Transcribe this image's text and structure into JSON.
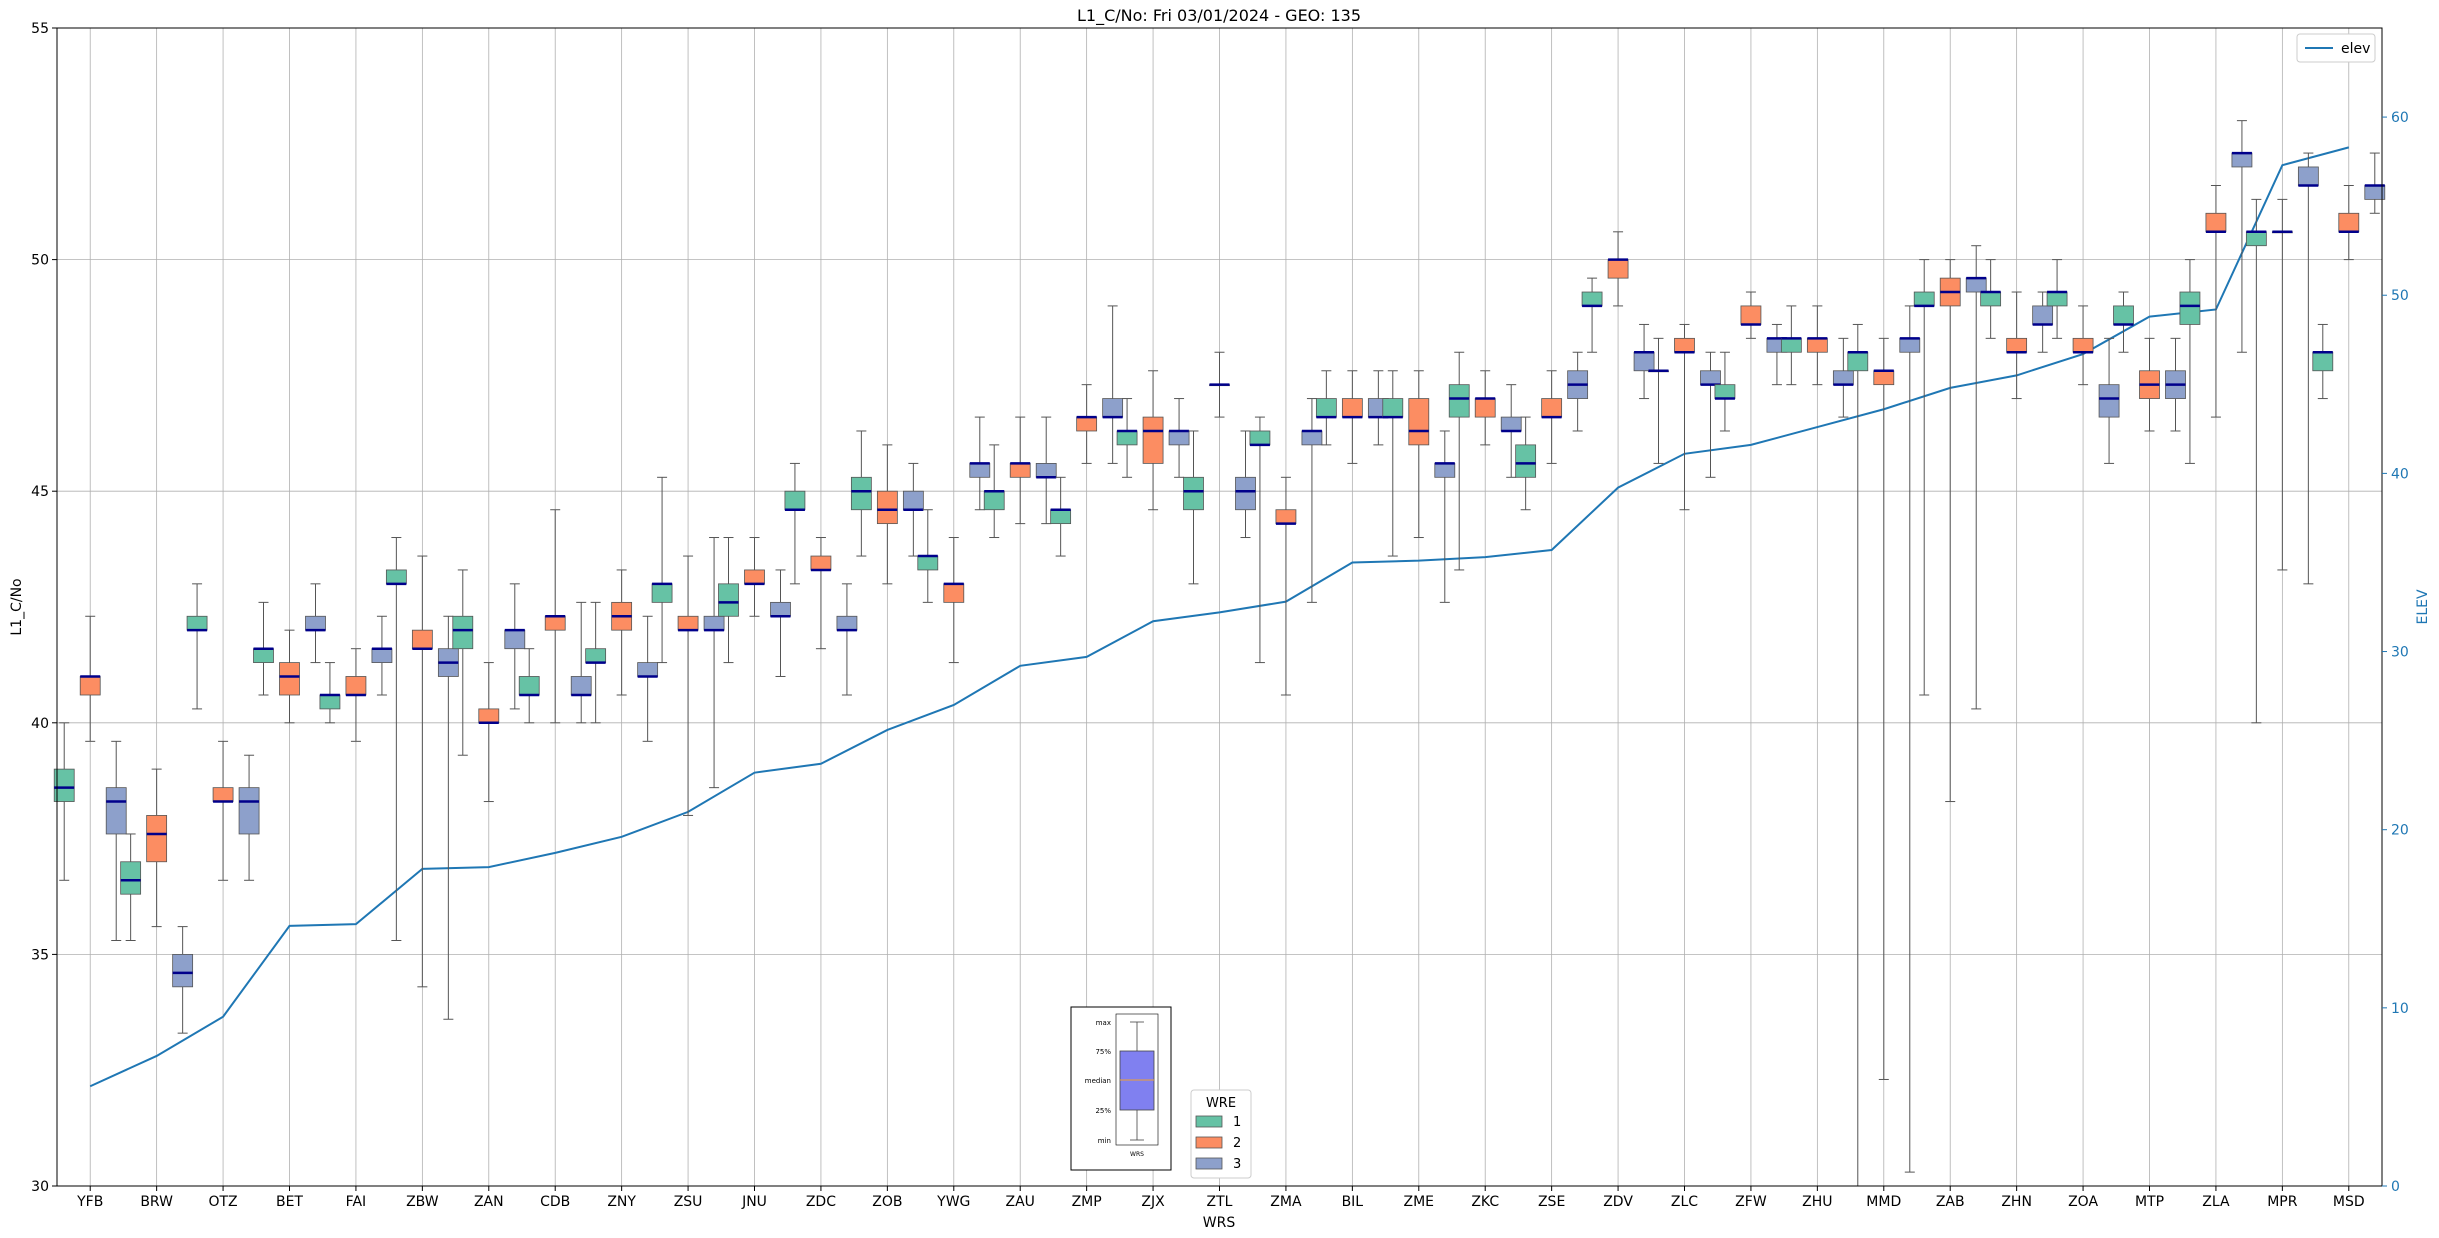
{
  "chart_data": {
    "type": "box",
    "title": "L1_C/No: Fri 03/01/2024 - GEO: 135",
    "xlabel": "WRS",
    "ylabel": "L1_C/No",
    "y2label": "ELEV",
    "ylim": [
      30,
      55
    ],
    "y2lim": [
      0,
      65
    ],
    "yticks": [
      30,
      35,
      40,
      45,
      50,
      55
    ],
    "y2ticks": [
      0,
      10,
      20,
      30,
      40,
      50,
      60
    ],
    "grid": true,
    "categories": [
      "YFB",
      "BRW",
      "OTZ",
      "BET",
      "FAI",
      "ZBW",
      "ZAN",
      "CDB",
      "ZNY",
      "ZSU",
      "JNU",
      "ZDC",
      "ZOB",
      "YWG",
      "ZAU",
      "ZMP",
      "ZJX",
      "ZTL",
      "ZMA",
      "BIL",
      "ZME",
      "ZKC",
      "ZSE",
      "ZDV",
      "ZLC",
      "ZFW",
      "ZHU",
      "MMD",
      "ZAB",
      "ZHN",
      "ZOA",
      "MTP",
      "ZLA",
      "MPR",
      "MSD"
    ],
    "colors": {
      "1": "#66c2a5",
      "2": "#fc8d62",
      "3": "#8da0cb",
      "median": "#00008b",
      "whisker": "#555555",
      "elev": "#1f77b4"
    },
    "wre_legend": {
      "title": "WRE",
      "items": [
        "1",
        "2",
        "3"
      ]
    },
    "elev_legend": "elev",
    "key_box": {
      "labels": [
        "max",
        "75%",
        "median",
        "25%",
        "min"
      ],
      "caption": "WRS"
    },
    "boxes": {
      "YFB": {
        "1": [
          36.6,
          38.3,
          38.6,
          39.0,
          40.0
        ],
        "2": [
          39.6,
          40.6,
          41.0,
          41.0,
          42.3
        ],
        "3": [
          35.3,
          37.6,
          38.3,
          38.6,
          39.6
        ]
      },
      "BRW": {
        "1": [
          35.3,
          36.3,
          36.6,
          37.0,
          37.6
        ],
        "2": [
          35.6,
          37.0,
          37.6,
          38.0,
          39.0
        ],
        "3": [
          33.3,
          34.3,
          34.6,
          35.0,
          35.6
        ]
      },
      "OTZ": {
        "1": [
          40.3,
          42.0,
          42.0,
          42.3,
          43.0
        ],
        "2": [
          36.6,
          38.3,
          38.3,
          38.6,
          39.6
        ],
        "3": [
          36.6,
          37.6,
          38.3,
          38.6,
          39.3
        ]
      },
      "BET": {
        "1": [
          40.6,
          41.3,
          41.6,
          41.6,
          42.6
        ],
        "2": [
          40.0,
          40.6,
          41.0,
          41.3,
          42.0
        ],
        "3": [
          41.3,
          42.0,
          42.0,
          42.3,
          43.0
        ]
      },
      "FAI": {
        "1": [
          40.0,
          40.3,
          40.6,
          40.6,
          41.3
        ],
        "2": [
          39.6,
          40.6,
          40.6,
          41.0,
          41.6
        ],
        "3": [
          40.6,
          41.3,
          41.6,
          41.6,
          42.3
        ]
      },
      "ZBW": {
        "1": [
          35.3,
          43.0,
          43.0,
          43.3,
          44.0
        ],
        "2": [
          34.3,
          41.6,
          41.6,
          42.0,
          43.6
        ],
        "3": [
          33.6,
          41.0,
          41.3,
          41.6,
          42.3
        ]
      },
      "ZAN": {
        "1": [
          39.3,
          41.6,
          42.0,
          42.3,
          43.3
        ],
        "2": [
          38.3,
          40.0,
          40.0,
          40.3,
          41.3
        ],
        "3": [
          40.3,
          41.6,
          42.0,
          42.0,
          43.0
        ]
      },
      "CDB": {
        "1": [
          40.0,
          40.6,
          40.6,
          41.0,
          41.6
        ],
        "2": [
          40.0,
          42.0,
          42.3,
          42.3,
          44.6
        ],
        "3": [
          40.0,
          40.6,
          40.6,
          41.0,
          42.6
        ]
      },
      "ZNY": {
        "1": [
          40.0,
          41.3,
          41.3,
          41.6,
          42.6
        ],
        "2": [
          40.6,
          42.0,
          42.3,
          42.6,
          43.3
        ],
        "3": [
          39.6,
          41.0,
          41.0,
          41.3,
          42.3
        ]
      },
      "ZSU": {
        "1": [
          41.3,
          42.6,
          43.0,
          43.0,
          45.3
        ],
        "2": [
          38.0,
          42.0,
          42.0,
          42.3,
          43.6
        ],
        "3": [
          38.6,
          42.0,
          42.0,
          42.3,
          44.0
        ]
      },
      "JNU": {
        "1": [
          41.3,
          42.3,
          42.6,
          43.0,
          44.0
        ],
        "2": [
          42.3,
          43.0,
          43.0,
          43.3,
          44.0
        ],
        "3": [
          41.0,
          42.3,
          42.3,
          42.6,
          43.3
        ]
      },
      "ZDC": {
        "1": [
          43.0,
          44.6,
          44.6,
          45.0,
          45.6
        ],
        "2": [
          41.6,
          43.3,
          43.3,
          43.6,
          44.0
        ],
        "3": [
          40.6,
          42.0,
          42.0,
          42.3,
          43.0
        ]
      },
      "ZOB": {
        "1": [
          43.6,
          44.6,
          45.0,
          45.3,
          46.3
        ],
        "2": [
          43.0,
          44.3,
          44.6,
          45.0,
          46.0
        ],
        "3": [
          43.6,
          44.6,
          44.6,
          45.0,
          45.6
        ]
      },
      "YWG": {
        "1": [
          42.6,
          43.3,
          43.6,
          43.6,
          44.6
        ],
        "2": [
          41.3,
          42.6,
          43.0,
          43.0,
          44.0
        ],
        "3": [
          44.6,
          45.3,
          45.6,
          45.6,
          46.6
        ]
      },
      "ZAU": {
        "1": [
          44.0,
          44.6,
          45.0,
          45.0,
          46.0
        ],
        "2": [
          44.3,
          45.3,
          45.6,
          45.6,
          46.6
        ],
        "3": [
          44.3,
          45.3,
          45.3,
          45.6,
          46.6
        ]
      },
      "ZMP": {
        "1": [
          43.6,
          44.3,
          44.6,
          44.6,
          45.3
        ],
        "2": [
          45.6,
          46.3,
          46.6,
          46.6,
          47.3
        ],
        "3": [
          45.6,
          46.6,
          46.6,
          47.0,
          49.0
        ]
      },
      "ZJX": {
        "1": [
          45.3,
          46.0,
          46.3,
          46.3,
          47.0
        ],
        "2": [
          44.6,
          45.6,
          46.3,
          46.6,
          47.6
        ],
        "3": [
          45.3,
          46.0,
          46.3,
          46.3,
          47.0
        ]
      },
      "ZTL": {
        "1": [
          43.0,
          44.6,
          45.0,
          45.3,
          46.3
        ],
        "2": [
          46.6,
          47.3,
          47.3,
          47.3,
          48.0
        ],
        "3": [
          44.0,
          44.6,
          45.0,
          45.3,
          46.3
        ]
      },
      "ZMA": {
        "1": [
          41.3,
          46.0,
          46.0,
          46.3,
          46.6
        ],
        "2": [
          40.6,
          44.3,
          44.3,
          44.6,
          45.3
        ],
        "3": [
          42.6,
          46.0,
          46.3,
          46.3,
          47.0
        ]
      },
      "BIL": {
        "1": [
          46.0,
          46.6,
          46.6,
          47.0,
          47.6
        ],
        "2": [
          45.6,
          46.6,
          46.6,
          47.0,
          47.6
        ],
        "3": [
          46.0,
          46.6,
          46.6,
          47.0,
          47.6
        ]
      },
      "ZME": {
        "1": [
          43.6,
          46.6,
          46.6,
          47.0,
          47.6
        ],
        "2": [
          44.0,
          46.0,
          46.3,
          47.0,
          47.6
        ],
        "3": [
          42.6,
          45.3,
          45.6,
          45.6,
          46.3
        ]
      },
      "ZKC": {
        "1": [
          43.3,
          46.6,
          47.0,
          47.3,
          48.0
        ],
        "2": [
          46.0,
          46.6,
          47.0,
          47.0,
          47.6
        ],
        "3": [
          45.3,
          46.3,
          46.3,
          46.6,
          47.3
        ]
      },
      "ZSE": {
        "1": [
          44.6,
          45.3,
          45.6,
          46.0,
          46.6
        ],
        "2": [
          45.6,
          46.6,
          46.6,
          47.0,
          47.6
        ],
        "3": [
          46.3,
          47.0,
          47.3,
          47.6,
          48.0
        ]
      },
      "ZDV": {
        "1": [
          48.0,
          49.0,
          49.0,
          49.3,
          49.6
        ],
        "2": [
          49.0,
          49.6,
          50.0,
          50.0,
          50.6
        ],
        "3": [
          47.0,
          47.6,
          48.0,
          48.0,
          48.6
        ]
      },
      "ZLC": {
        "1": [
          45.6,
          47.6,
          47.6,
          47.6,
          48.3
        ],
        "2": [
          44.6,
          48.0,
          48.0,
          48.3,
          48.6
        ],
        "3": [
          45.3,
          47.3,
          47.3,
          47.6,
          48.0
        ]
      },
      "ZFW": {
        "1": [
          46.3,
          47.0,
          47.0,
          47.3,
          48.0
        ],
        "2": [
          48.3,
          48.6,
          48.6,
          49.0,
          49.3
        ],
        "3": [
          47.3,
          48.0,
          48.3,
          48.3,
          48.6
        ]
      },
      "ZHU": {
        "1": [
          47.3,
          48.0,
          48.3,
          48.3,
          49.0
        ],
        "2": [
          47.3,
          48.0,
          48.3,
          48.3,
          49.0
        ],
        "3": [
          46.6,
          47.3,
          47.3,
          47.6,
          48.3
        ]
      },
      "MMD": {
        "1": [
          30.0,
          47.6,
          48.0,
          48.0,
          48.6
        ],
        "2": [
          32.3,
          47.3,
          47.6,
          47.6,
          48.3
        ],
        "3": [
          30.3,
          48.0,
          48.3,
          48.3,
          49.0
        ]
      },
      "ZAB": {
        "1": [
          40.6,
          49.0,
          49.0,
          49.3,
          50.0
        ],
        "2": [
          38.3,
          49.0,
          49.3,
          49.6,
          50.0
        ],
        "3": [
          40.3,
          49.3,
          49.6,
          49.6,
          50.3
        ]
      },
      "ZHN": {
        "1": [
          48.3,
          49.0,
          49.3,
          49.3,
          50.0
        ],
        "2": [
          47.0,
          48.0,
          48.0,
          48.3,
          49.3
        ],
        "3": [
          48.0,
          48.6,
          48.6,
          49.0,
          49.3
        ]
      },
      "ZOA": {
        "1": [
          48.3,
          49.0,
          49.3,
          49.3,
          50.0
        ],
        "2": [
          47.3,
          48.0,
          48.0,
          48.3,
          49.0
        ],
        "3": [
          45.6,
          46.6,
          47.0,
          47.3,
          48.3
        ]
      },
      "MTP": {
        "1": [
          48.0,
          48.6,
          48.6,
          49.0,
          49.3
        ],
        "2": [
          46.3,
          47.0,
          47.3,
          47.6,
          48.3
        ],
        "3": [
          46.3,
          47.0,
          47.3,
          47.6,
          48.3
        ]
      },
      "ZLA": {
        "1": [
          45.6,
          48.6,
          49.0,
          49.3,
          50.0
        ],
        "2": [
          46.6,
          50.6,
          50.6,
          51.0,
          51.6
        ],
        "3": [
          48.0,
          52.0,
          52.3,
          52.3,
          53.0
        ]
      },
      "MPR": {
        "1": [
          40.0,
          50.3,
          50.6,
          50.6,
          51.3
        ],
        "2": [
          43.3,
          50.6,
          50.6,
          50.6,
          51.3
        ],
        "3": [
          43.0,
          51.6,
          51.6,
          52.0,
          52.3
        ]
      },
      "MSD": {
        "1": [
          47.0,
          47.6,
          48.0,
          48.0,
          48.6
        ],
        "2": [
          50.0,
          50.6,
          50.6,
          51.0,
          51.6
        ],
        "3": [
          51.0,
          51.3,
          51.6,
          51.6,
          52.3
        ]
      }
    },
    "elev": [
      5.6,
      7.3,
      9.5,
      14.6,
      14.7,
      17.8,
      17.9,
      18.7,
      19.6,
      21.0,
      23.2,
      23.7,
      25.6,
      27.0,
      29.2,
      29.7,
      31.7,
      32.2,
      32.8,
      35.0,
      35.1,
      35.3,
      35.7,
      39.2,
      41.1,
      41.6,
      42.6,
      43.6,
      44.8,
      45.5,
      46.7,
      48.8,
      49.2,
      57.3,
      58.3
    ]
  }
}
